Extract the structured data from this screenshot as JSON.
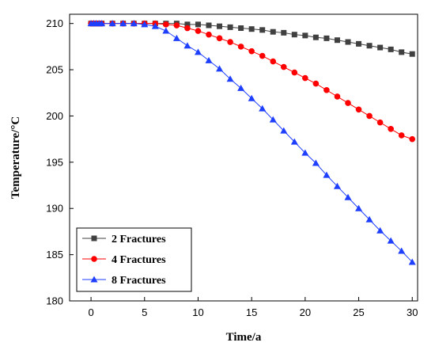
{
  "chart_data": {
    "type": "line",
    "title": "",
    "xlabel": "Time/a",
    "ylabel": "Temperature/°C",
    "xlim": [
      -2,
      30.5
    ],
    "ylim": [
      180,
      211
    ],
    "x_ticks": [
      0,
      5,
      10,
      15,
      20,
      25,
      30
    ],
    "y_ticks": [
      180,
      185,
      190,
      195,
      200,
      205,
      210
    ],
    "grid": false,
    "legend_position": "bottom-left",
    "series": [
      {
        "name": "2 Fractures",
        "color": "#404040",
        "marker": "square",
        "x": [
          0,
          0.25,
          0.5,
          0.75,
          1,
          2,
          3,
          4,
          5,
          6,
          7,
          8,
          9,
          10,
          11,
          12,
          13,
          14,
          15,
          16,
          17,
          18,
          19,
          20,
          21,
          22,
          23,
          24,
          25,
          26,
          27,
          28,
          29,
          30
        ],
        "y": [
          210,
          210,
          210,
          210,
          210,
          210,
          210,
          210,
          210,
          210,
          210,
          210,
          209.9,
          209.9,
          209.8,
          209.7,
          209.6,
          209.5,
          209.4,
          209.3,
          209.1,
          209,
          208.8,
          208.7,
          208.5,
          208.4,
          208.2,
          208,
          207.8,
          207.6,
          207.4,
          207.2,
          206.9,
          206.7
        ]
      },
      {
        "name": "4 Fractures",
        "color": "#ff0000",
        "marker": "circle",
        "x": [
          0,
          0.25,
          0.5,
          0.75,
          1,
          2,
          3,
          4,
          5,
          6,
          7,
          8,
          9,
          10,
          11,
          12,
          13,
          14,
          15,
          16,
          17,
          18,
          19,
          20,
          21,
          22,
          23,
          24,
          25,
          26,
          27,
          28,
          29,
          30
        ],
        "y": [
          210,
          210,
          210,
          210,
          210,
          210,
          210,
          210,
          210,
          210,
          209.9,
          209.8,
          209.5,
          209.2,
          208.8,
          208.4,
          208,
          207.5,
          207,
          206.5,
          205.9,
          205.3,
          204.7,
          204.1,
          203.5,
          202.8,
          202.1,
          201.4,
          200.7,
          200,
          199.3,
          198.6,
          197.9,
          197.5
        ]
      },
      {
        "name": "8 Fractures",
        "color": "#1f3fff",
        "marker": "triangle",
        "x": [
          0,
          0.25,
          0.5,
          0.75,
          1,
          2,
          3,
          4,
          5,
          6,
          7,
          8,
          9,
          10,
          11,
          12,
          13,
          14,
          15,
          16,
          17,
          18,
          19,
          20,
          21,
          22,
          23,
          24,
          25,
          26,
          27,
          28,
          29,
          30
        ],
        "y": [
          210,
          210,
          210,
          210,
          210,
          210,
          210,
          210,
          209.9,
          209.7,
          209.2,
          208.4,
          207.6,
          206.9,
          206,
          205.1,
          204,
          203,
          201.9,
          200.8,
          199.6,
          198.4,
          197.2,
          196,
          194.9,
          193.6,
          192.4,
          191.2,
          190,
          188.8,
          187.6,
          186.5,
          185.4,
          184.2
        ]
      }
    ]
  }
}
